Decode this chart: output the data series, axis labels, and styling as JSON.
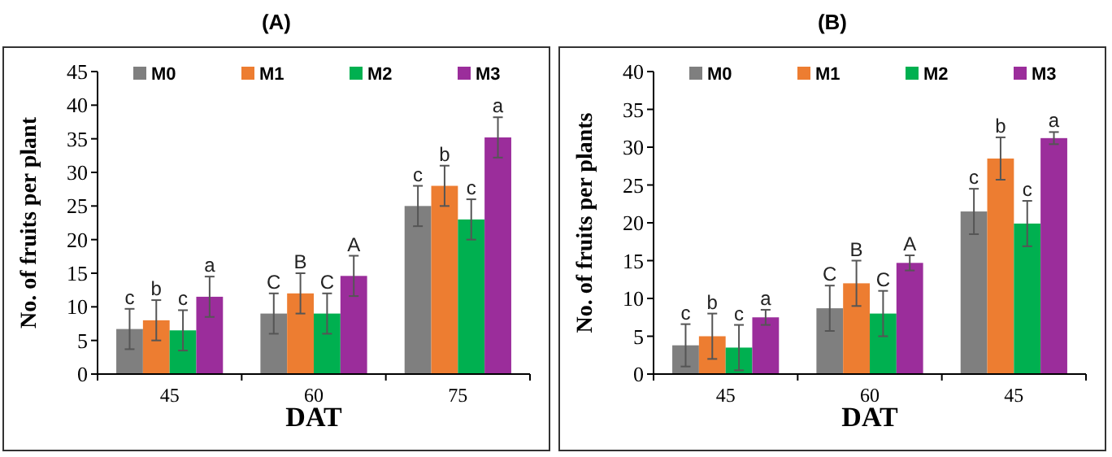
{
  "chart_data": [
    {
      "type": "bar",
      "title": "(A)",
      "xlabel": "DAT",
      "ylabel": "No. of fruits per plant",
      "categories": [
        "45",
        "60",
        "75"
      ],
      "series": [
        {
          "name": "M0",
          "color": "#7f7f7f",
          "values": [
            6.7,
            9,
            25
          ],
          "errors": [
            3,
            3,
            3
          ],
          "value_labels": [
            "c",
            "C",
            "c"
          ]
        },
        {
          "name": "M1",
          "color": "#ed7d31",
          "values": [
            8,
            12,
            28
          ],
          "errors": [
            3,
            3,
            3
          ],
          "value_labels": [
            "b",
            "B",
            "b"
          ]
        },
        {
          "name": "M2",
          "color": "#00b050",
          "values": [
            6.5,
            9,
            23
          ],
          "errors": [
            3,
            3,
            3
          ],
          "value_labels": [
            "c",
            "C",
            "c"
          ]
        },
        {
          "name": "M3",
          "color": "#9b2d9b",
          "values": [
            11.5,
            14.6,
            35.2
          ],
          "errors": [
            3,
            3,
            3
          ],
          "value_labels": [
            "a",
            "A",
            "a"
          ]
        }
      ],
      "ylim": [
        0,
        45
      ],
      "yticks": [
        0,
        5,
        10,
        15,
        20,
        25,
        30,
        35,
        40,
        45
      ],
      "legend": "top"
    },
    {
      "type": "bar",
      "title": "(B)",
      "xlabel": "DAT",
      "ylabel": "No. of fruits per plants",
      "categories": [
        "45",
        "60",
        "45"
      ],
      "series": [
        {
          "name": "M0",
          "color": "#7f7f7f",
          "values": [
            3.8,
            8.7,
            21.5
          ],
          "errors": [
            2.8,
            3,
            3
          ],
          "value_labels": [
            "c",
            "C",
            "c"
          ]
        },
        {
          "name": "M1",
          "color": "#ed7d31",
          "values": [
            5,
            12,
            28.5
          ],
          "errors": [
            3,
            3,
            2.8
          ],
          "value_labels": [
            "b",
            "B",
            "b"
          ]
        },
        {
          "name": "M2",
          "color": "#00b050",
          "values": [
            3.5,
            8,
            19.9
          ],
          "errors": [
            3,
            3,
            3
          ],
          "value_labels": [
            "c",
            "C",
            "c"
          ]
        },
        {
          "name": "M3",
          "color": "#9b2d9b",
          "values": [
            7.5,
            14.7,
            31.2
          ],
          "errors": [
            1,
            1,
            0.8
          ],
          "value_labels": [
            "a",
            "A",
            "a"
          ]
        }
      ],
      "ylim": [
        0,
        40
      ],
      "yticks": [
        0,
        5,
        10,
        15,
        20,
        25,
        30,
        35,
        40
      ],
      "legend": "top"
    }
  ]
}
